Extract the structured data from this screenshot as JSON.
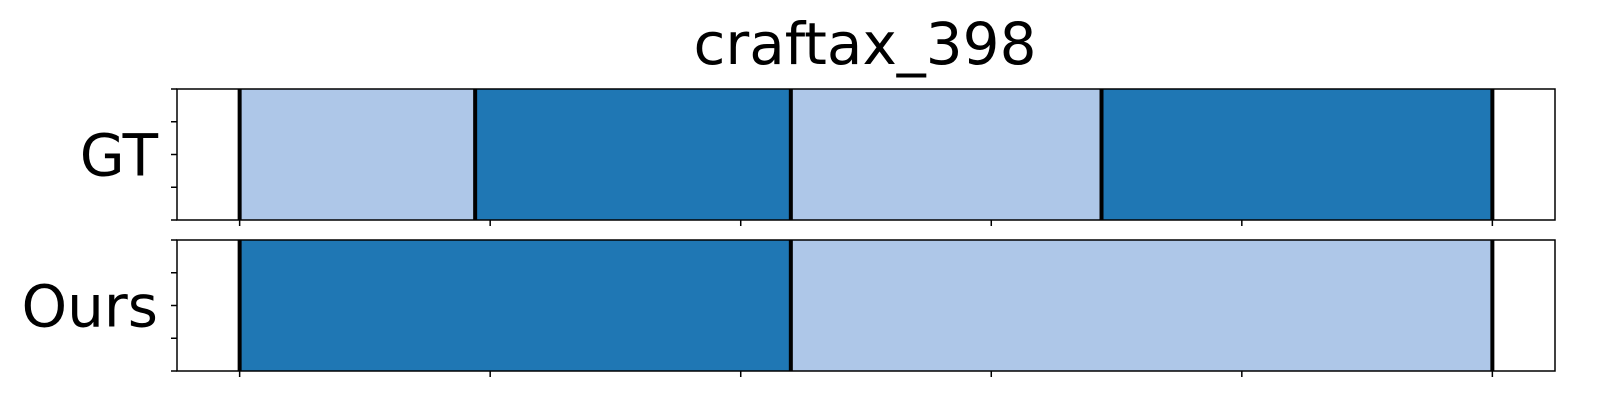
{
  "chart_data": {
    "type": "segmentation",
    "title": "craftax_398",
    "xlim": [
      -25,
      525
    ],
    "x_ticks": [
      0,
      100,
      200,
      300,
      400,
      500
    ],
    "rows": [
      {
        "label": "GT",
        "boundaries": [
          0,
          94,
          220,
          344,
          500
        ],
        "segments": [
          {
            "start": 0,
            "end": 94,
            "color": "#aec7e8"
          },
          {
            "start": 94,
            "end": 220,
            "color": "#1f77b4"
          },
          {
            "start": 220,
            "end": 344,
            "color": "#aec7e8"
          },
          {
            "start": 344,
            "end": 500,
            "color": "#1f77b4"
          }
        ]
      },
      {
        "label": "Ours",
        "boundaries": [
          0,
          220,
          500
        ],
        "segments": [
          {
            "start": 0,
            "end": 220,
            "color": "#1f77b4"
          },
          {
            "start": 220,
            "end": 500,
            "color": "#aec7e8"
          }
        ]
      }
    ],
    "colors": {
      "light": "#aec7e8",
      "dark": "#1f77b4",
      "boundary": "#000000"
    }
  }
}
